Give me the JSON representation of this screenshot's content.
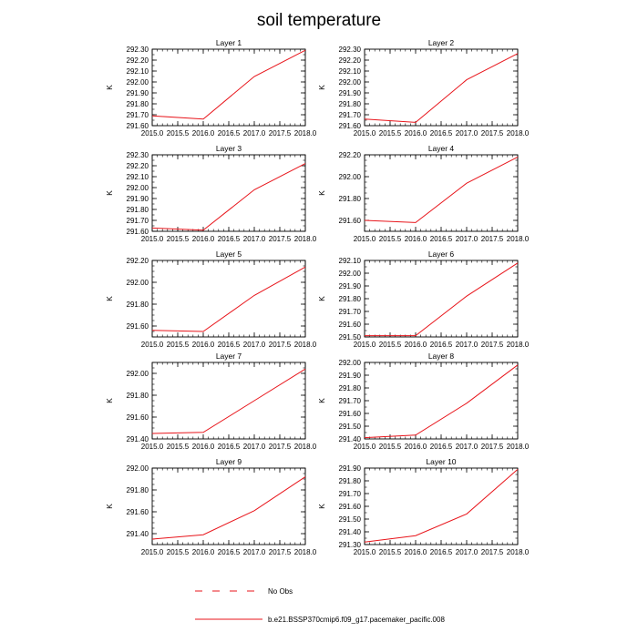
{
  "title": "soil temperature",
  "line_color": "#e8151b",
  "legend": [
    {
      "label": "No Obs",
      "style": "dashed"
    },
    {
      "label": "b.e21.BSSP370cmip6.f09_g17.pacemaker_pacific.008",
      "style": "solid"
    }
  ],
  "chart_data": [
    {
      "type": "line",
      "title": "Layer 1",
      "ylabel": "K",
      "xlim": [
        2015.0,
        2018.0
      ],
      "ylim": [
        291.6,
        292.3
      ],
      "x_ticks": [
        "2015.0",
        "2015.5",
        "2016.0",
        "2016.5",
        "2017.0",
        "2017.5",
        "2018.0"
      ],
      "y_ticks": [
        "291.60",
        "291.70",
        "291.80",
        "291.90",
        "292.00",
        "292.10",
        "292.20",
        "292.30"
      ],
      "series": [
        {
          "x": [
            2015.0,
            2016.0,
            2017.0,
            2018.0
          ],
          "y": [
            291.69,
            291.66,
            292.05,
            292.29
          ]
        }
      ]
    },
    {
      "type": "line",
      "title": "Layer 2",
      "ylabel": "K",
      "xlim": [
        2015.0,
        2018.0
      ],
      "ylim": [
        291.6,
        292.3
      ],
      "x_ticks": [
        "2015.0",
        "2015.5",
        "2016.0",
        "2016.5",
        "2017.0",
        "2017.5",
        "2018.0"
      ],
      "y_ticks": [
        "291.60",
        "291.70",
        "291.80",
        "291.90",
        "292.00",
        "292.10",
        "292.20",
        "292.30"
      ],
      "series": [
        {
          "x": [
            2015.0,
            2016.0,
            2017.0,
            2018.0
          ],
          "y": [
            291.66,
            291.63,
            292.02,
            292.26
          ]
        }
      ]
    },
    {
      "type": "line",
      "title": "Layer 3",
      "ylabel": "K",
      "xlim": [
        2015.0,
        2018.0
      ],
      "ylim": [
        291.6,
        292.3
      ],
      "x_ticks": [
        "2015.0",
        "2015.5",
        "2016.0",
        "2016.5",
        "2017.0",
        "2017.5",
        "2018.0"
      ],
      "y_ticks": [
        "291.60",
        "291.70",
        "291.80",
        "291.90",
        "292.00",
        "292.10",
        "292.20",
        "292.30"
      ],
      "series": [
        {
          "x": [
            2015.0,
            2016.0,
            2017.0,
            2018.0
          ],
          "y": [
            291.63,
            291.61,
            291.98,
            292.22
          ]
        }
      ]
    },
    {
      "type": "line",
      "title": "Layer 4",
      "ylabel": "K",
      "xlim": [
        2015.0,
        2018.0
      ],
      "ylim": [
        291.5,
        292.2
      ],
      "x_ticks": [
        "2015.0",
        "2015.5",
        "2016.0",
        "2016.5",
        "2017.0",
        "2017.5",
        "2018.0"
      ],
      "y_ticks": [
        "291.60",
        "291.80",
        "292.00",
        "292.20"
      ],
      "series": [
        {
          "x": [
            2015.0,
            2016.0,
            2017.0,
            2018.0
          ],
          "y": [
            291.6,
            291.58,
            291.94,
            292.18
          ]
        }
      ]
    },
    {
      "type": "line",
      "title": "Layer 5",
      "ylabel": "K",
      "xlim": [
        2015.0,
        2018.0
      ],
      "ylim": [
        291.5,
        292.2
      ],
      "x_ticks": [
        "2015.0",
        "2015.5",
        "2016.0",
        "2016.5",
        "2017.0",
        "2017.5",
        "2018.0"
      ],
      "y_ticks": [
        "291.60",
        "291.80",
        "292.00",
        "292.20"
      ],
      "series": [
        {
          "x": [
            2015.0,
            2016.0,
            2017.0,
            2018.0
          ],
          "y": [
            291.56,
            291.55,
            291.88,
            292.14
          ]
        }
      ]
    },
    {
      "type": "line",
      "title": "Layer 6",
      "ylabel": "K",
      "xlim": [
        2015.0,
        2018.0
      ],
      "ylim": [
        291.5,
        292.1
      ],
      "x_ticks": [
        "2015.0",
        "2015.5",
        "2016.0",
        "2016.5",
        "2017.0",
        "2017.5",
        "2018.0"
      ],
      "y_ticks": [
        "291.50",
        "291.60",
        "291.70",
        "291.80",
        "291.90",
        "292.00",
        "292.10"
      ],
      "series": [
        {
          "x": [
            2015.0,
            2016.0,
            2017.0,
            2018.0
          ],
          "y": [
            291.51,
            291.51,
            291.82,
            292.08
          ]
        }
      ]
    },
    {
      "type": "line",
      "title": "Layer 7",
      "ylabel": "K",
      "xlim": [
        2015.0,
        2018.0
      ],
      "ylim": [
        291.4,
        292.1
      ],
      "x_ticks": [
        "2015.0",
        "2015.5",
        "2016.0",
        "2016.5",
        "2017.0",
        "2017.5",
        "2018.0"
      ],
      "y_ticks": [
        "291.40",
        "291.60",
        "291.80",
        "292.00"
      ],
      "series": [
        {
          "x": [
            2015.0,
            2016.0,
            2017.0,
            2018.0
          ],
          "y": [
            291.45,
            291.46,
            291.75,
            292.04
          ]
        }
      ]
    },
    {
      "type": "line",
      "title": "Layer 8",
      "ylabel": "K",
      "xlim": [
        2015.0,
        2018.0
      ],
      "ylim": [
        291.4,
        292.0
      ],
      "x_ticks": [
        "2015.0",
        "2015.5",
        "2016.0",
        "2016.5",
        "2017.0",
        "2017.5",
        "2018.0"
      ],
      "y_ticks": [
        "291.40",
        "291.50",
        "291.60",
        "291.70",
        "291.80",
        "291.90",
        "292.00"
      ],
      "series": [
        {
          "x": [
            2015.0,
            2016.0,
            2017.0,
            2018.0
          ],
          "y": [
            291.41,
            291.43,
            291.68,
            291.98
          ]
        }
      ]
    },
    {
      "type": "line",
      "title": "Layer 9",
      "ylabel": "K",
      "xlim": [
        2015.0,
        2018.0
      ],
      "ylim": [
        291.3,
        292.0
      ],
      "x_ticks": [
        "2015.0",
        "2015.5",
        "2016.0",
        "2016.5",
        "2017.0",
        "2017.5",
        "2018.0"
      ],
      "y_ticks": [
        "291.40",
        "291.60",
        "291.80",
        "292.00"
      ],
      "series": [
        {
          "x": [
            2015.0,
            2016.0,
            2017.0,
            2018.0
          ],
          "y": [
            291.35,
            291.39,
            291.61,
            291.92
          ]
        }
      ]
    },
    {
      "type": "line",
      "title": "Layer 10",
      "ylabel": "K",
      "xlim": [
        2015.0,
        2018.0
      ],
      "ylim": [
        291.3,
        291.9
      ],
      "x_ticks": [
        "2015.0",
        "2015.5",
        "2016.0",
        "2016.5",
        "2017.0",
        "2017.5",
        "2018.0"
      ],
      "y_ticks": [
        "291.30",
        "291.40",
        "291.50",
        "291.60",
        "291.70",
        "291.80",
        "291.90"
      ],
      "series": [
        {
          "x": [
            2015.0,
            2016.0,
            2017.0,
            2018.0
          ],
          "y": [
            291.32,
            291.37,
            291.54,
            291.89
          ]
        }
      ]
    }
  ]
}
